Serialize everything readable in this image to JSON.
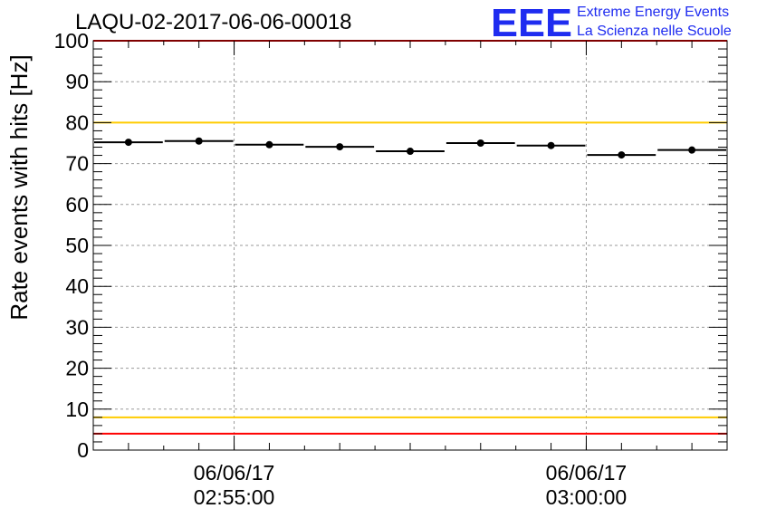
{
  "chart_data": {
    "type": "scatter",
    "title": "LAQU-02-2017-06-06-00018",
    "ylabel": "Rate events with hits [Hz]",
    "xlabel": "",
    "ylim": [
      0,
      100
    ],
    "yticks": [
      0,
      10,
      20,
      30,
      40,
      50,
      60,
      70,
      80,
      90,
      100
    ],
    "grid": true,
    "x_tick_labels": [
      {
        "date": "06/06/17",
        "time": "02:55:00"
      },
      {
        "date": "06/06/17",
        "time": "03:00:00"
      }
    ],
    "xlim_minutes": [
      -4.5,
      4.5
    ],
    "x_tick_positions_minutes": [
      -2.5,
      2.5
    ],
    "series": [
      {
        "bin_edges_minutes": [
          -4.5,
          -3.5,
          -2.5,
          -1.5,
          -0.5,
          0.5,
          1.5,
          2.5,
          3.5,
          4.5
        ],
        "values": [
          75.2,
          75.5,
          74.6,
          74.1,
          73.0,
          75.0,
          74.4,
          72.1,
          73.3
        ],
        "errors": [
          0.7,
          0.7,
          0.7,
          0.7,
          0.7,
          0.7,
          0.7,
          0.7,
          0.7
        ]
      }
    ],
    "reference_lines": [
      {
        "value": 100,
        "color": "#ff0000"
      },
      {
        "value": 80,
        "color": "#ffcc00"
      },
      {
        "value": 8,
        "color": "#ffcc00"
      },
      {
        "value": 4,
        "color": "#ff0000"
      }
    ]
  },
  "logo": {
    "mark": "EEE",
    "line1": "Extreme Energy Events",
    "line2": "La Scienza nelle Scuole",
    "color": "#1f2cf0"
  }
}
